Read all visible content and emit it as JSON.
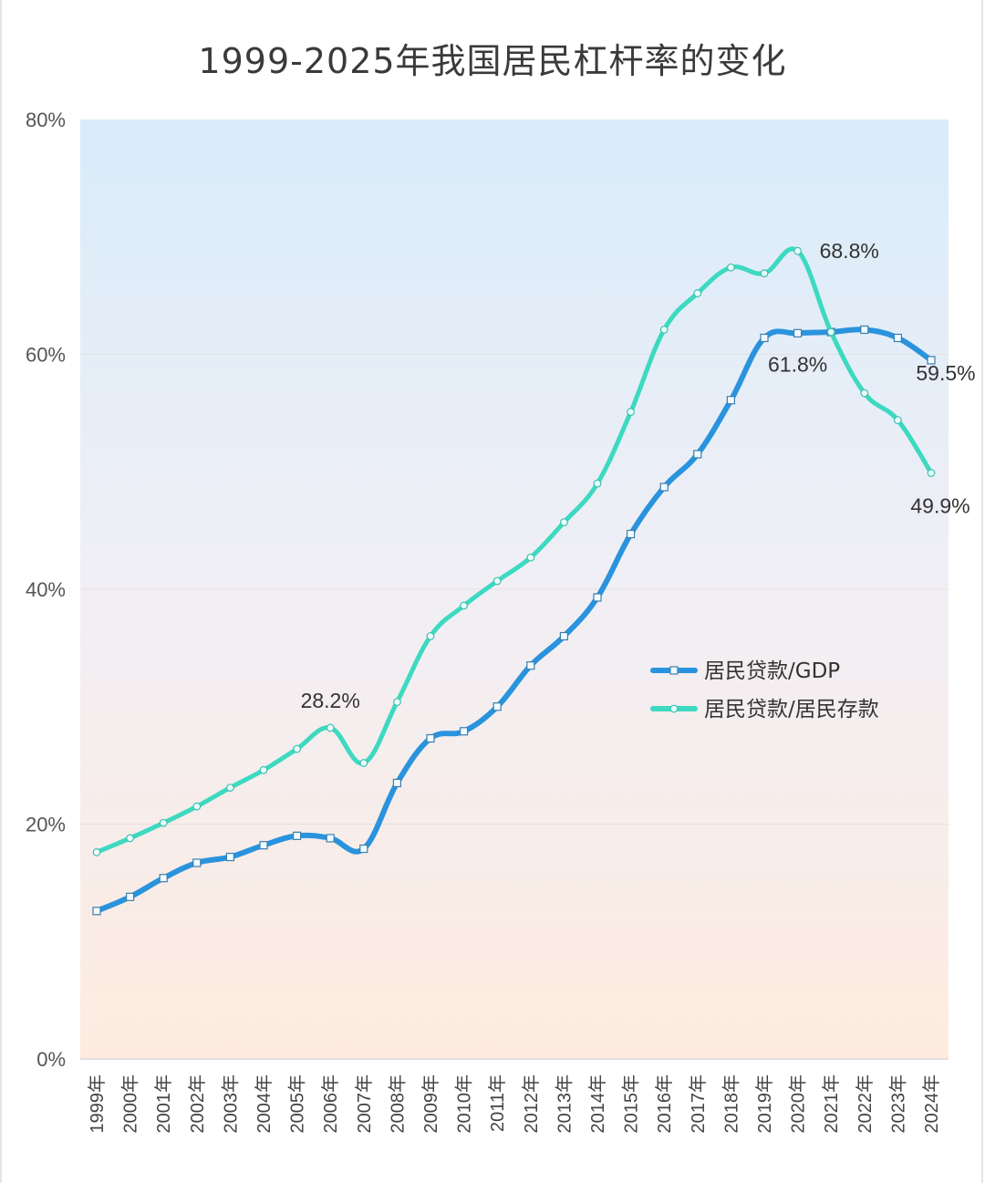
{
  "chart_data": {
    "type": "line",
    "title": "1999-2025年我国居民杠杆率的变化",
    "xlabel": "",
    "ylabel": "",
    "ylim": [
      0,
      80
    ],
    "yticks": [
      "0%",
      "20%",
      "40%",
      "60%",
      "80%"
    ],
    "grid": true,
    "legend_position": "inside-right",
    "categories": [
      "1999年",
      "2000年",
      "2001年",
      "2002年",
      "2003年",
      "2004年",
      "2005年",
      "2006年",
      "2007年",
      "2008年",
      "2009年",
      "2010年",
      "2011年",
      "2012年",
      "2013年",
      "2014年",
      "2015年",
      "2016年",
      "2017年",
      "2018年",
      "2019年",
      "2020年",
      "2021年",
      "2022年",
      "2023年",
      "2024年"
    ],
    "series": [
      {
        "name": "居民贷款/GDP",
        "color": "#2a93dd",
        "marker": "square",
        "values": [
          12.6,
          13.8,
          15.4,
          16.7,
          17.2,
          18.2,
          19.0,
          18.8,
          17.9,
          23.5,
          27.3,
          27.9,
          30.0,
          33.5,
          36.0,
          39.3,
          44.7,
          48.7,
          51.5,
          56.1,
          61.4,
          61.8,
          61.9,
          62.1,
          61.4,
          59.5
        ]
      },
      {
        "name": "居民贷款/居民存款",
        "color": "#3dd9c1",
        "marker": "circle",
        "values": [
          17.6,
          18.8,
          20.1,
          21.5,
          23.1,
          24.6,
          26.4,
          28.2,
          25.2,
          30.4,
          36.0,
          38.6,
          40.7,
          42.7,
          45.7,
          49.0,
          55.1,
          62.1,
          65.2,
          67.4,
          66.9,
          68.8,
          61.9,
          56.7,
          54.4,
          49.9
        ]
      }
    ],
    "annotations": [
      {
        "text": "28.2%",
        "series": 1,
        "index": 7
      },
      {
        "text": "68.8%",
        "series": 1,
        "index": 21
      },
      {
        "text": "61.8%",
        "series": 0,
        "index": 21
      },
      {
        "text": "59.5%",
        "series": 0,
        "index": 25
      },
      {
        "text": "49.9%",
        "series": 1,
        "index": 25
      }
    ]
  },
  "header": {
    "title": "1999-2025年我国居民杠杆率的变化"
  },
  "colors": {
    "bg_top": "#d8ecfa",
    "bg_bottom": "#fdebdf",
    "gdp": "#2a93dd",
    "deposit": "#3dd9c1"
  }
}
